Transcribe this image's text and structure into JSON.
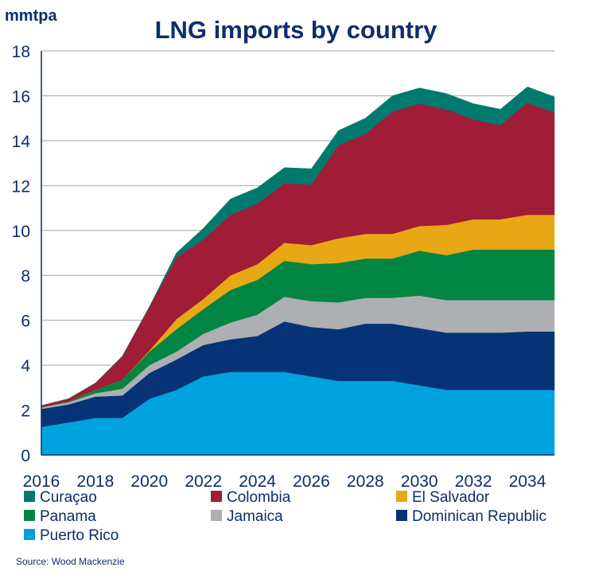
{
  "chart_data": {
    "type": "area",
    "stacked": true,
    "title": "LNG imports by country",
    "ylabel": "mmtpa",
    "xlabel": "",
    "ylim": [
      0,
      18
    ],
    "yticks": [
      0,
      2,
      4,
      6,
      8,
      10,
      12,
      14,
      16,
      18
    ],
    "xlim": [
      2016,
      2035
    ],
    "xticks": [
      2016,
      2018,
      2020,
      2022,
      2024,
      2026,
      2028,
      2030,
      2032,
      2034
    ],
    "grid": true,
    "legend_position": "bottom",
    "source": "Source: Wood Mackenzie",
    "x": [
      2016,
      2017,
      2018,
      2019,
      2020,
      2021,
      2022,
      2023,
      2024,
      2025,
      2026,
      2027,
      2028,
      2029,
      2030,
      2031,
      2032,
      2033,
      2034,
      2035
    ],
    "series": [
      {
        "name": "Puerto Rico",
        "color": "#00a3e0",
        "values": [
          1.25,
          1.45,
          1.65,
          1.65,
          2.5,
          2.9,
          3.5,
          3.7,
          3.7,
          3.7,
          3.5,
          3.3,
          3.3,
          3.3,
          3.1,
          2.9,
          2.9,
          2.9,
          2.9,
          2.9
        ]
      },
      {
        "name": "Dominican Republic",
        "color": "#063376",
        "values": [
          0.8,
          0.8,
          0.95,
          1.0,
          1.15,
          1.35,
          1.4,
          1.45,
          1.6,
          2.25,
          2.2,
          2.3,
          2.55,
          2.55,
          2.55,
          2.55,
          2.55,
          2.55,
          2.6,
          2.6
        ]
      },
      {
        "name": "Jamaica",
        "color": "#adafb2",
        "values": [
          0.07,
          0.1,
          0.15,
          0.3,
          0.35,
          0.35,
          0.5,
          0.75,
          0.95,
          1.1,
          1.15,
          1.2,
          1.15,
          1.15,
          1.45,
          1.45,
          1.45,
          1.45,
          1.4,
          1.4
        ]
      },
      {
        "name": "Panama",
        "color": "#008542",
        "values": [
          0,
          0.03,
          0.15,
          0.4,
          0.6,
          1.0,
          1.1,
          1.45,
          1.55,
          1.6,
          1.65,
          1.75,
          1.75,
          1.75,
          2.0,
          2.0,
          2.25,
          2.25,
          2.25,
          2.25
        ]
      },
      {
        "name": "El Salvador",
        "color": "#e8a714",
        "values": [
          0,
          0,
          0,
          0,
          0.05,
          0.45,
          0.45,
          0.65,
          0.7,
          0.8,
          0.85,
          1.1,
          1.1,
          1.1,
          1.1,
          1.35,
          1.35,
          1.35,
          1.55,
          1.55
        ]
      },
      {
        "name": "Colombia",
        "color": "#a01c37",
        "values": [
          0.08,
          0.12,
          0.3,
          1.05,
          1.95,
          2.75,
          2.65,
          2.7,
          2.7,
          2.65,
          2.7,
          4.15,
          4.45,
          5.45,
          5.45,
          5.15,
          4.45,
          4.2,
          5.0,
          4.55
        ]
      },
      {
        "name": "Curaçao",
        "color": "#007a6e",
        "values": [
          0,
          0,
          0,
          0,
          0,
          0.2,
          0.5,
          0.7,
          0.7,
          0.7,
          0.7,
          0.65,
          0.7,
          0.7,
          0.7,
          0.7,
          0.7,
          0.7,
          0.7,
          0.7
        ]
      }
    ],
    "legend_order": [
      "Curaçao",
      "Colombia",
      "El Salvador",
      "Panama",
      "Jamaica",
      "Dominican Republic",
      "Puerto Rico"
    ]
  }
}
